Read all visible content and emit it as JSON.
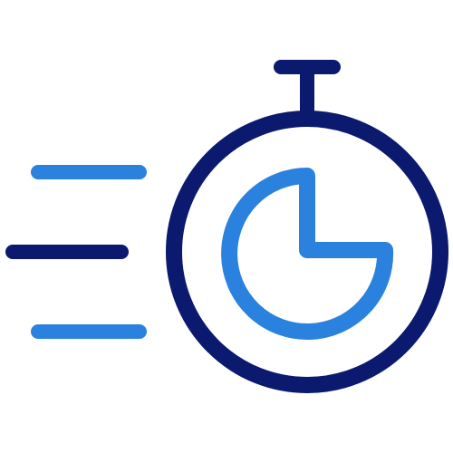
{
  "icon": {
    "name": "fast-stopwatch-icon",
    "parts": [
      "speed-lines",
      "stopwatch-crown",
      "stopwatch-body",
      "pie-timer"
    ]
  },
  "colors": {
    "primary_dark": "#0b1a6e",
    "accent_blue": "#2b82de",
    "background": "#ffffff"
  },
  "timer": {
    "elapsed_fraction": 0.75
  }
}
